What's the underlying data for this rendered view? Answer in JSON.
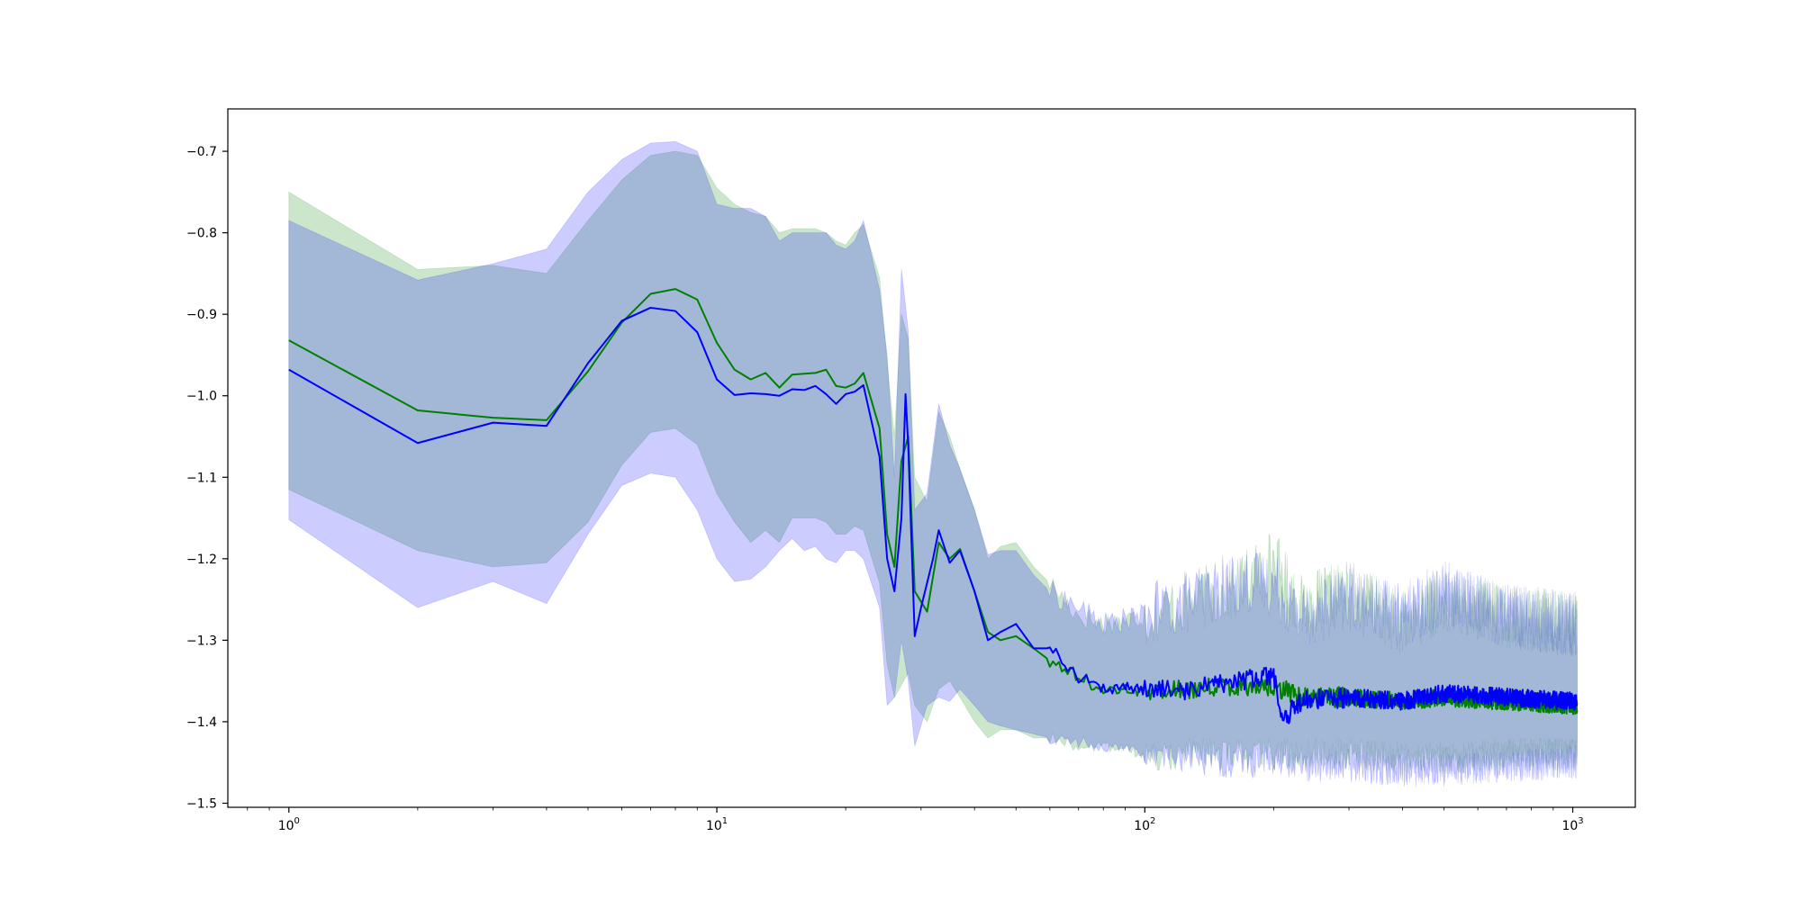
{
  "chart_data": {
    "type": "line",
    "xscale": "log",
    "xlim": [
      0.72,
      1400
    ],
    "ylim": [
      -1.505,
      -0.648
    ],
    "xticks": [
      {
        "value": 1,
        "base": "10",
        "exp": "0"
      },
      {
        "value": 10,
        "base": "10",
        "exp": "1"
      },
      {
        "value": 100,
        "base": "10",
        "exp": "2"
      },
      {
        "value": 1000,
        "base": "10",
        "exp": "3"
      }
    ],
    "yticks": [
      {
        "value": -0.7,
        "label": "−0.7"
      },
      {
        "value": -0.8,
        "label": "−0.8"
      },
      {
        "value": -0.9,
        "label": "−0.9"
      },
      {
        "value": -1.0,
        "label": "−1.0"
      },
      {
        "value": -1.1,
        "label": "−1.1"
      },
      {
        "value": -1.2,
        "label": "−1.2"
      },
      {
        "value": -1.3,
        "label": "−1.3"
      },
      {
        "value": -1.4,
        "label": "−1.4"
      },
      {
        "value": -1.5,
        "label": "−1.5"
      }
    ],
    "grid": false,
    "series": [
      {
        "color": "#008000",
        "band_color": "#008000",
        "band_opacity": 0.2,
        "key_points": [
          [
            1,
            -0.932
          ],
          [
            2,
            -1.018
          ],
          [
            3,
            -1.027
          ],
          [
            4,
            -1.03
          ],
          [
            5,
            -0.97
          ],
          [
            6,
            -0.91
          ],
          [
            7,
            -0.875
          ],
          [
            8,
            -0.869
          ],
          [
            9,
            -0.882
          ],
          [
            10,
            -0.935
          ],
          [
            11,
            -0.968
          ],
          [
            12,
            -0.98
          ],
          [
            13,
            -0.972
          ],
          [
            14,
            -0.99
          ],
          [
            15,
            -0.974
          ],
          [
            17,
            -0.972
          ],
          [
            18,
            -0.968
          ],
          [
            19,
            -0.988
          ],
          [
            20,
            -0.99
          ],
          [
            21,
            -0.985
          ],
          [
            22,
            -0.972
          ],
          [
            24,
            -1.04
          ],
          [
            25,
            -1.17
          ],
          [
            26,
            -1.21
          ],
          [
            27,
            -1.08
          ],
          [
            28,
            -1.05
          ],
          [
            29,
            -1.24
          ],
          [
            31,
            -1.265
          ],
          [
            33,
            -1.18
          ],
          [
            35,
            -1.2
          ],
          [
            37,
            -1.188
          ],
          [
            40,
            -1.24
          ],
          [
            43,
            -1.29
          ],
          [
            46,
            -1.3
          ],
          [
            50,
            -1.295
          ],
          [
            55,
            -1.31
          ],
          [
            60,
            -1.325
          ],
          [
            70,
            -1.345
          ],
          [
            80,
            -1.36
          ],
          [
            100,
            -1.365
          ],
          [
            130,
            -1.36
          ],
          [
            160,
            -1.355
          ],
          [
            200,
            -1.355
          ],
          [
            230,
            -1.37
          ],
          [
            300,
            -1.37
          ],
          [
            400,
            -1.375
          ],
          [
            500,
            -1.37
          ],
          [
            700,
            -1.375
          ],
          [
            1000,
            -1.38
          ]
        ],
        "band_upper": [
          [
            1,
            -0.75
          ],
          [
            2,
            -0.845
          ],
          [
            3,
            -0.84
          ],
          [
            4,
            -0.85
          ],
          [
            5,
            -0.785
          ],
          [
            6,
            -0.735
          ],
          [
            7,
            -0.705
          ],
          [
            8,
            -0.7
          ],
          [
            9,
            -0.705
          ],
          [
            10,
            -0.745
          ],
          [
            11,
            -0.765
          ],
          [
            12,
            -0.775
          ],
          [
            13,
            -0.78
          ],
          [
            14,
            -0.8
          ],
          [
            15,
            -0.795
          ],
          [
            17,
            -0.795
          ],
          [
            18,
            -0.8
          ],
          [
            19,
            -0.81
          ],
          [
            20,
            -0.815
          ],
          [
            21,
            -0.8
          ],
          [
            22,
            -0.79
          ],
          [
            24,
            -0.855
          ],
          [
            25,
            -0.96
          ],
          [
            26,
            -1.05
          ],
          [
            27,
            -0.9
          ],
          [
            28,
            -0.93
          ],
          [
            29,
            -1.1
          ],
          [
            31,
            -1.13
          ],
          [
            33,
            -1.02
          ],
          [
            35,
            -1.05
          ],
          [
            37,
            -1.09
          ],
          [
            40,
            -1.14
          ],
          [
            43,
            -1.2
          ],
          [
            46,
            -1.185
          ],
          [
            50,
            -1.18
          ],
          [
            55,
            -1.21
          ],
          [
            60,
            -1.23
          ],
          [
            70,
            -1.27
          ],
          [
            80,
            -1.28
          ],
          [
            100,
            -1.27
          ],
          [
            130,
            -1.25
          ],
          [
            160,
            -1.24
          ],
          [
            200,
            -1.2
          ],
          [
            230,
            -1.26
          ],
          [
            300,
            -1.24
          ],
          [
            400,
            -1.28
          ],
          [
            500,
            -1.25
          ],
          [
            700,
            -1.27
          ],
          [
            1000,
            -1.28
          ]
        ],
        "band_lower": [
          [
            1,
            -1.115
          ],
          [
            2,
            -1.19
          ],
          [
            3,
            -1.21
          ],
          [
            4,
            -1.205
          ],
          [
            5,
            -1.155
          ],
          [
            6,
            -1.085
          ],
          [
            7,
            -1.045
          ],
          [
            8,
            -1.04
          ],
          [
            9,
            -1.06
          ],
          [
            10,
            -1.12
          ],
          [
            11,
            -1.155
          ],
          [
            12,
            -1.18
          ],
          [
            13,
            -1.165
          ],
          [
            14,
            -1.18
          ],
          [
            15,
            -1.15
          ],
          [
            17,
            -1.15
          ],
          [
            18,
            -1.155
          ],
          [
            19,
            -1.17
          ],
          [
            20,
            -1.17
          ],
          [
            21,
            -1.16
          ],
          [
            22,
            -1.165
          ],
          [
            24,
            -1.23
          ],
          [
            25,
            -1.33
          ],
          [
            26,
            -1.37
          ],
          [
            27,
            -1.355
          ],
          [
            28,
            -1.34
          ],
          [
            29,
            -1.38
          ],
          [
            31,
            -1.4
          ],
          [
            33,
            -1.36
          ],
          [
            35,
            -1.35
          ],
          [
            37,
            -1.37
          ],
          [
            40,
            -1.4
          ],
          [
            43,
            -1.42
          ],
          [
            46,
            -1.41
          ],
          [
            50,
            -1.41
          ],
          [
            55,
            -1.42
          ],
          [
            60,
            -1.42
          ],
          [
            70,
            -1.43
          ],
          [
            80,
            -1.43
          ],
          [
            100,
            -1.44
          ],
          [
            130,
            -1.44
          ],
          [
            160,
            -1.44
          ],
          [
            200,
            -1.44
          ],
          [
            230,
            -1.44
          ],
          [
            300,
            -1.44
          ],
          [
            400,
            -1.445
          ],
          [
            500,
            -1.445
          ],
          [
            700,
            -1.44
          ],
          [
            1000,
            -1.44
          ]
        ]
      },
      {
        "color": "#0000ff",
        "band_color": "#0000ff",
        "band_opacity": 0.2,
        "key_points": [
          [
            1,
            -0.968
          ],
          [
            2,
            -1.058
          ],
          [
            3,
            -1.033
          ],
          [
            4,
            -1.037
          ],
          [
            5,
            -0.96
          ],
          [
            6,
            -0.908
          ],
          [
            7,
            -0.892
          ],
          [
            8,
            -0.896
          ],
          [
            9,
            -0.922
          ],
          [
            10,
            -0.98
          ],
          [
            11,
            -0.999
          ],
          [
            12,
            -0.997
          ],
          [
            13,
            -0.998
          ],
          [
            14,
            -1.0
          ],
          [
            15,
            -0.992
          ],
          [
            16,
            -0.993
          ],
          [
            17,
            -0.988
          ],
          [
            18,
            -0.998
          ],
          [
            19,
            -1.01
          ],
          [
            20,
            -0.998
          ],
          [
            21,
            -0.995
          ],
          [
            22,
            -0.987
          ],
          [
            24,
            -1.075
          ],
          [
            25,
            -1.2
          ],
          [
            26,
            -1.24
          ],
          [
            27,
            -1.15
          ],
          [
            27.6,
            -0.998
          ],
          [
            28,
            -1.06
          ],
          [
            29,
            -1.295
          ],
          [
            30,
            -1.26
          ],
          [
            32,
            -1.2
          ],
          [
            33,
            -1.165
          ],
          [
            35,
            -1.205
          ],
          [
            37,
            -1.19
          ],
          [
            40,
            -1.24
          ],
          [
            43,
            -1.3
          ],
          [
            46,
            -1.29
          ],
          [
            50,
            -1.28
          ],
          [
            55,
            -1.31
          ],
          [
            60,
            -1.31
          ],
          [
            70,
            -1.345
          ],
          [
            80,
            -1.36
          ],
          [
            100,
            -1.36
          ],
          [
            130,
            -1.36
          ],
          [
            160,
            -1.35
          ],
          [
            200,
            -1.345
          ],
          [
            210,
            -1.4
          ],
          [
            230,
            -1.375
          ],
          [
            300,
            -1.37
          ],
          [
            400,
            -1.375
          ],
          [
            500,
            -1.365
          ],
          [
            700,
            -1.37
          ],
          [
            1000,
            -1.375
          ]
        ],
        "band_upper": [
          [
            1,
            -0.785
          ],
          [
            2,
            -0.858
          ],
          [
            3,
            -0.838
          ],
          [
            4,
            -0.82
          ],
          [
            5,
            -0.75
          ],
          [
            6,
            -0.71
          ],
          [
            7,
            -0.69
          ],
          [
            8,
            -0.688
          ],
          [
            9,
            -0.7
          ],
          [
            10,
            -0.765
          ],
          [
            11,
            -0.77
          ],
          [
            12,
            -0.77
          ],
          [
            13,
            -0.78
          ],
          [
            14,
            -0.81
          ],
          [
            15,
            -0.8
          ],
          [
            17,
            -0.8
          ],
          [
            18,
            -0.8
          ],
          [
            19,
            -0.815
          ],
          [
            20,
            -0.82
          ],
          [
            21,
            -0.81
          ],
          [
            22,
            -0.785
          ],
          [
            24,
            -0.87
          ],
          [
            25,
            -0.95
          ],
          [
            26,
            -1.1
          ],
          [
            27,
            -0.845
          ],
          [
            28,
            -0.92
          ],
          [
            29,
            -1.14
          ],
          [
            31,
            -1.12
          ],
          [
            33,
            -1.01
          ],
          [
            35,
            -1.06
          ],
          [
            37,
            -1.09
          ],
          [
            40,
            -1.14
          ],
          [
            43,
            -1.195
          ],
          [
            46,
            -1.19
          ],
          [
            50,
            -1.19
          ],
          [
            55,
            -1.22
          ],
          [
            60,
            -1.24
          ],
          [
            70,
            -1.26
          ],
          [
            80,
            -1.28
          ],
          [
            100,
            -1.27
          ],
          [
            130,
            -1.25
          ],
          [
            160,
            -1.23
          ],
          [
            200,
            -1.23
          ],
          [
            230,
            -1.27
          ],
          [
            300,
            -1.25
          ],
          [
            400,
            -1.27
          ],
          [
            500,
            -1.24
          ],
          [
            700,
            -1.27
          ],
          [
            1000,
            -1.28
          ]
        ],
        "band_lower": [
          [
            1,
            -1.152
          ],
          [
            2,
            -1.26
          ],
          [
            3,
            -1.228
          ],
          [
            4,
            -1.255
          ],
          [
            5,
            -1.17
          ],
          [
            6,
            -1.11
          ],
          [
            7,
            -1.095
          ],
          [
            8,
            -1.1
          ],
          [
            9,
            -1.14
          ],
          [
            10,
            -1.2
          ],
          [
            11,
            -1.228
          ],
          [
            12,
            -1.225
          ],
          [
            13,
            -1.21
          ],
          [
            14,
            -1.19
          ],
          [
            15,
            -1.175
          ],
          [
            16,
            -1.19
          ],
          [
            17,
            -1.185
          ],
          [
            18,
            -1.2
          ],
          [
            19,
            -1.205
          ],
          [
            20,
            -1.19
          ],
          [
            21,
            -1.19
          ],
          [
            22,
            -1.2
          ],
          [
            24,
            -1.26
          ],
          [
            25,
            -1.38
          ],
          [
            26,
            -1.37
          ],
          [
            27,
            -1.3
          ],
          [
            28,
            -1.35
          ],
          [
            29,
            -1.43
          ],
          [
            31,
            -1.38
          ],
          [
            33,
            -1.37
          ],
          [
            35,
            -1.375
          ],
          [
            37,
            -1.36
          ],
          [
            40,
            -1.38
          ],
          [
            43,
            -1.4
          ],
          [
            46,
            -1.405
          ],
          [
            50,
            -1.41
          ],
          [
            55,
            -1.415
          ],
          [
            60,
            -1.42
          ],
          [
            70,
            -1.425
          ],
          [
            80,
            -1.43
          ],
          [
            100,
            -1.435
          ],
          [
            130,
            -1.445
          ],
          [
            160,
            -1.45
          ],
          [
            200,
            -1.45
          ],
          [
            230,
            -1.455
          ],
          [
            300,
            -1.455
          ],
          [
            400,
            -1.46
          ],
          [
            500,
            -1.46
          ],
          [
            700,
            -1.455
          ],
          [
            1000,
            -1.45
          ]
        ]
      }
    ]
  }
}
